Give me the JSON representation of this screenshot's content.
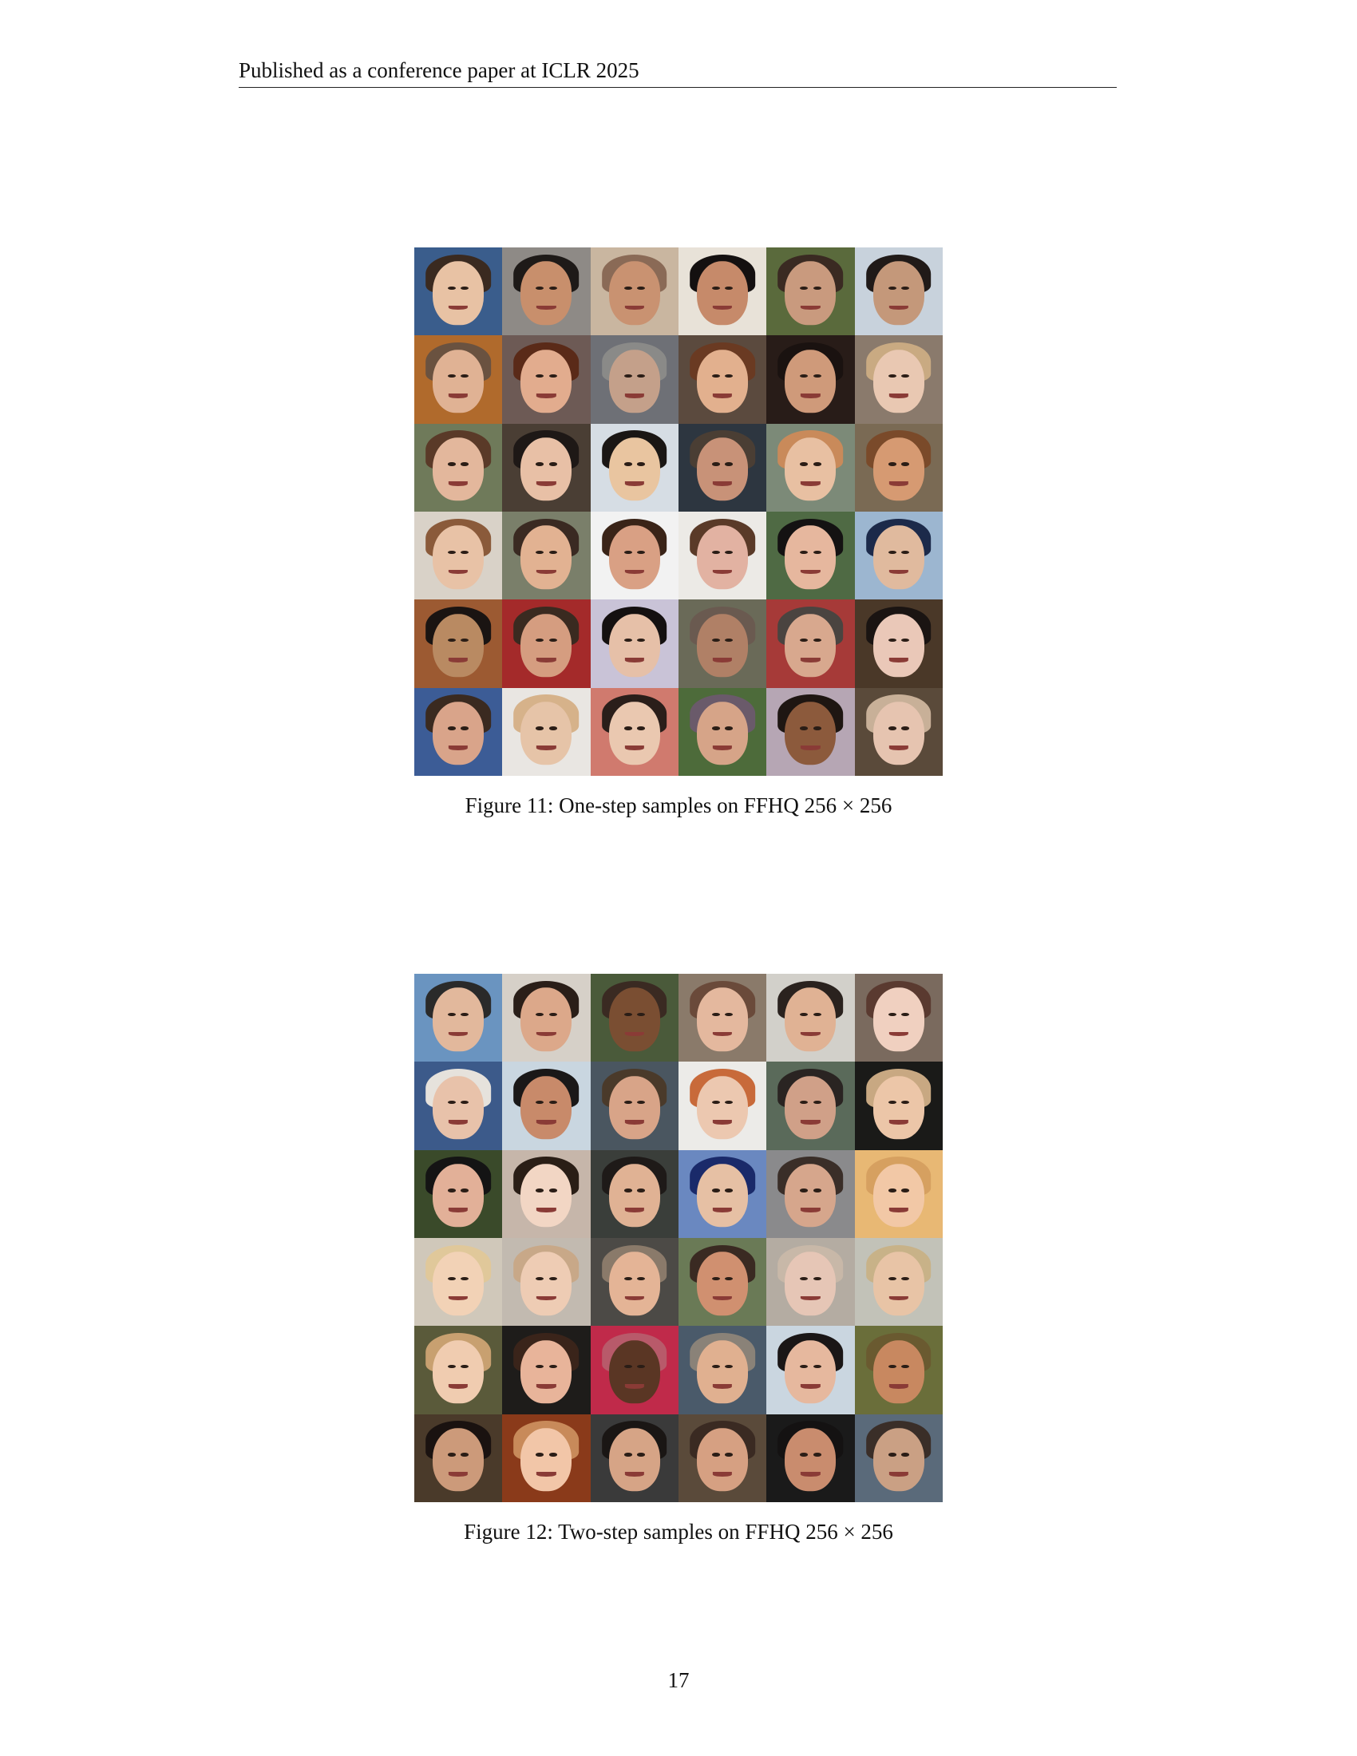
{
  "header": {
    "text": "Published as a conference paper at ICLR 2025"
  },
  "figures": [
    {
      "caption": "Figure 11: One-step samples on FFHQ 256 × 256",
      "rows": 6,
      "cols": 6,
      "palette": {
        "bg": [
          "#3a5d8c",
          "#8e8a86",
          "#c9b6a0",
          "#e8e2d8",
          "#5a6a3c",
          "#c8d2dc",
          "#b06a2c",
          "#6d5a55",
          "#6e7076",
          "#5b4a3e",
          "#281c18",
          "#8a7a6c",
          "#6f7a5a",
          "#4a3e34",
          "#d6dde4",
          "#2d3640",
          "#7c8a78",
          "#7a6a54",
          "#d9d2c8",
          "#7a7f6a",
          "#f2f2f2",
          "#eceae6",
          "#4f6a44",
          "#9cb6d0",
          "#9c5a32",
          "#a42a2a",
          "#c9c3d7",
          "#6a6a58",
          "#a63a38",
          "#4a3828",
          "#3c5c96",
          "#e9e6e2",
          "#d07a6e",
          "#4d6b3a",
          "#b6a6b4",
          "#5a4a3a"
        ],
        "skin": [
          "#e8c2a4",
          "#c88f6c",
          "#c99271",
          "#c68a6a",
          "#c99a7e",
          "#c4987a",
          "#e0b294",
          "#e2ac8e",
          "#c4a08a",
          "#e2b08e",
          "#cf9a7a",
          "#e9c8b2",
          "#e3b79c",
          "#e8c0a6",
          "#e9c5a0",
          "#c89278",
          "#e8c0a2",
          "#d69a72",
          "#e8c2a6",
          "#e2b292",
          "#d9a084",
          "#e2b2a2",
          "#e6b79e",
          "#e0ba9e",
          "#b98a62",
          "#d59d80",
          "#e6c0a8",
          "#b08066",
          "#d8a88e",
          "#eac8b8",
          "#d9a48a",
          "#e6c4a8",
          "#eac8b0",
          "#d6a488",
          "#8c5a3c",
          "#e6c4b0"
        ],
        "hair": [
          "#3a2a20",
          "#1e1a18",
          "#8a6a56",
          "#141010",
          "#3a2a22",
          "#201a18",
          "#6a5240",
          "#5a2a18",
          "#8a8a88",
          "#6a3a22",
          "#1a1210",
          "#c9aa82",
          "#5a3a28",
          "#1e1816",
          "#1a1614",
          "#4a3e34",
          "#c98a5a",
          "#7a4a2a",
          "#8a5a3a",
          "#3a2a22",
          "#3a2418",
          "#5a3a28",
          "#141212",
          "#1c2a4a",
          "#1a1412",
          "#3a2a20",
          "#141010",
          "#6a5a50",
          "#4a4440",
          "#1a1412",
          "#3a2a20",
          "#d6b28a",
          "#2a1e1a",
          "#6a5a6a",
          "#1e1612",
          "#c8b098"
        ]
      }
    },
    {
      "caption": "Figure 12: Two-step samples on FFHQ 256 × 256",
      "rows": 6,
      "cols": 6,
      "palette": {
        "bg": [
          "#6a94c0",
          "#d6d0c8",
          "#4a5a3a",
          "#8a7a6a",
          "#d2d0ca",
          "#7a6a5e",
          "#3c5a8a",
          "#c9d6e0",
          "#4a5660",
          "#ecebe8",
          "#5a6a5a",
          "#1a1a18",
          "#3a4a2a",
          "#c6b6aa",
          "#3a3e3a",
          "#6a88c0",
          "#8a8a8c",
          "#e8b874",
          "#d0c8ba",
          "#c2bab0",
          "#4c4a46",
          "#6a7a56",
          "#b4aca2",
          "#c2c2b8",
          "#5a5a3a",
          "#1e1c1a",
          "#c02a4a",
          "#4a5a6a",
          "#cad6e0",
          "#6a6e3a",
          "#4a3a2a",
          "#8a3a1a",
          "#3a3a3a",
          "#5a4a3a",
          "#1a1a1a",
          "#5a6a7a"
        ],
        "skin": [
          "#e2b89c",
          "#dca88a",
          "#7a4e32",
          "#e4b89e",
          "#e0b294",
          "#f0d0c0",
          "#e8c2aa",
          "#c88a6a",
          "#d8a488",
          "#ecc8b0",
          "#d0a088",
          "#ecc6a8",
          "#e2b098",
          "#f2d6c4",
          "#e0b294",
          "#e6c0a4",
          "#d6a68c",
          "#f2c8a6",
          "#f2d2b6",
          "#eeccb4",
          "#e4b496",
          "#d09070",
          "#e6c6b6",
          "#e8c4a6",
          "#f0ccb0",
          "#e8b49a",
          "#5a3624",
          "#e0b090",
          "#e6b89e",
          "#c88860",
          "#cc9a7a",
          "#f2c6a8",
          "#d6a486",
          "#d6a082",
          "#c98c6e",
          "#caa084"
        ],
        "hair": [
          "#2a2a2a",
          "#2a1e18",
          "#3a2a22",
          "#6a4a3a",
          "#2a221e",
          "#5a3a30",
          "#e6e2dc",
          "#1a1818",
          "#4a3a2a",
          "#c86a3a",
          "#2a2422",
          "#c8a882",
          "#141414",
          "#2a1e16",
          "#1e1a18",
          "#1a2a6a",
          "#3a2e28",
          "#d6a060",
          "#e0c89a",
          "#c8a888",
          "#8a7a6a",
          "#3a2a22",
          "#c8b8a8",
          "#c8b288",
          "#c8a070",
          "#3a241a",
          "#b85a6a",
          "#8a8278",
          "#1a1616",
          "#6a5a30",
          "#1a1210",
          "#c88a5a",
          "#1a1614",
          "#3a2a22",
          "#141212",
          "#3a2e28"
        ]
      }
    }
  ],
  "page_number": "17"
}
